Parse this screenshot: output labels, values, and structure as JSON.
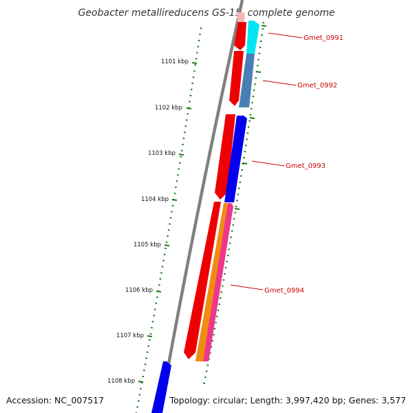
{
  "title": "Geobacter metallireducens GS-15, complete genome",
  "colors": {
    "backbone": "#808080",
    "tick": "#1a7a1a",
    "label": "#cc0000",
    "red_feature": "#ee0000",
    "blue_feature": "#0000ee",
    "cyan_feature": "#00e5f0",
    "steel_feature": "#4a7fb5",
    "orange_feature": "#f08c10",
    "pink_feature": "#f0358c",
    "faded_feature": "#f4b8b8"
  },
  "ticks": [
    {
      "label": "1101 kbp"
    },
    {
      "label": "1102 kbp"
    },
    {
      "label": "1103 kbp"
    },
    {
      "label": "1104 kbp"
    },
    {
      "label": "1105 kbp"
    },
    {
      "label": "1106 kbp"
    },
    {
      "label": "1107 kbp"
    },
    {
      "label": "1108 kbp"
    }
  ],
  "genes": [
    {
      "label": "Gmet_0991"
    },
    {
      "label": "Gmet_0992"
    },
    {
      "label": "Gmet_0993"
    },
    {
      "label": "Gmet_0994"
    }
  ],
  "footer": {
    "accession": "Accession: NC_007517",
    "topology": "Topology: circular; Length: 3,997,420 bp; Genes: 3,577"
  }
}
